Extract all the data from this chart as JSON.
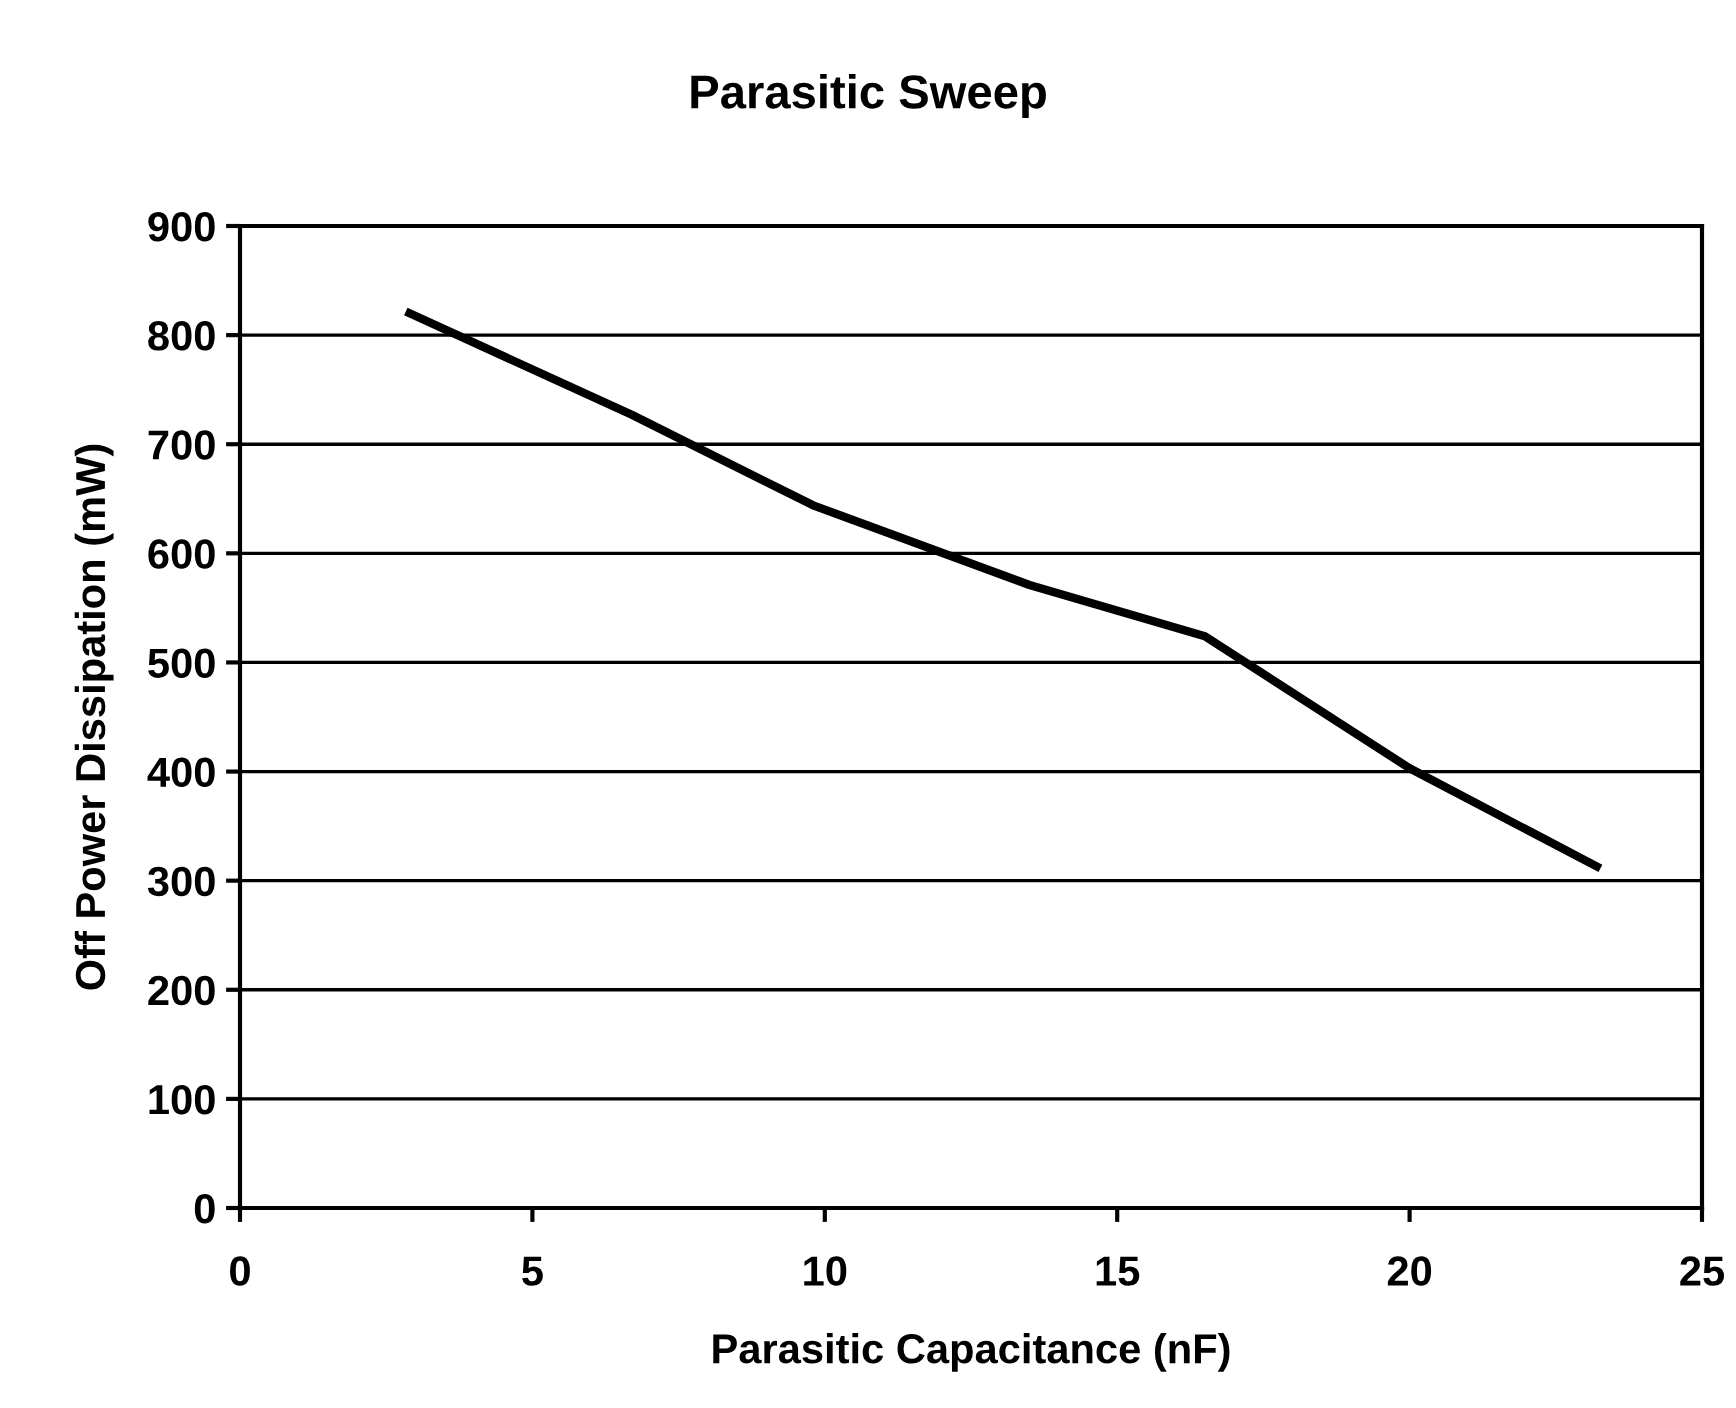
{
  "chart_data": {
    "type": "line",
    "title": "Parasitic Sweep",
    "xlabel": "Parasitic Capacitance (nF)",
    "ylabel": "Off Power Dissipation (mW)",
    "x": [
      2.9,
      6.7,
      9.8,
      13.5,
      16.5,
      20.0,
      23.2
    ],
    "series": [
      {
        "color": "#000000",
        "values": [
          820,
          727,
          644,
          571,
          524,
          403,
          313
        ]
      }
    ],
    "xlim": [
      0,
      25
    ],
    "xticks": [
      0,
      5,
      10,
      15,
      20,
      25
    ],
    "ylim": [
      0,
      900
    ],
    "yticks": [
      0,
      100,
      200,
      300,
      400,
      500,
      600,
      700,
      800,
      900
    ],
    "grid": "y",
    "legend": false,
    "marker": "none",
    "line_style": "solid"
  }
}
